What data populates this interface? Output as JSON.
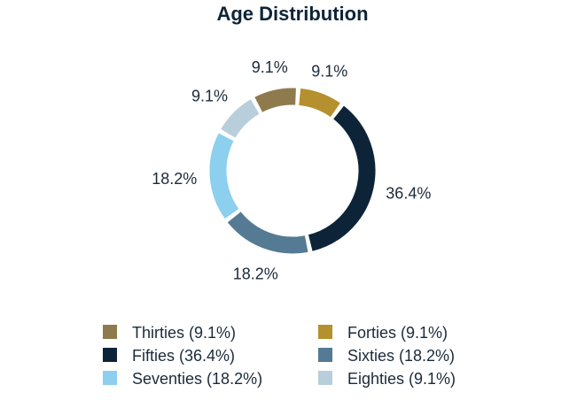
{
  "chart_data": {
    "type": "pie",
    "variant": "donut",
    "title": "Age Distribution",
    "slices": [
      {
        "name": "Forties",
        "value": 9.1,
        "label": "9.1%",
        "legend": "Forties (9.1%)",
        "color": "#b5902e"
      },
      {
        "name": "Fifties",
        "value": 36.4,
        "label": "36.4%",
        "legend": "Fifties (36.4%)",
        "color": "#0d2438"
      },
      {
        "name": "Sixties",
        "value": 18.2,
        "label": "18.2%",
        "legend": "Sixties (18.2%)",
        "color": "#557a93"
      },
      {
        "name": "Seventies",
        "value": 18.2,
        "label": "18.2%",
        "legend": "Seventies (18.2%)",
        "color": "#8ccfee"
      },
      {
        "name": "Eighties",
        "value": 9.1,
        "label": "9.1%",
        "legend": "Eighties (9.1%)",
        "color": "#b9cedb"
      },
      {
        "name": "Thirties",
        "value": 9.1,
        "label": "9.1%",
        "legend": "Thirties (9.1%)",
        "color": "#8f7a4e"
      }
    ],
    "legend_order": [
      "Thirties",
      "Forties",
      "Fifties",
      "Sixties",
      "Seventies",
      "Eighties"
    ],
    "legend_position": "bottom"
  }
}
